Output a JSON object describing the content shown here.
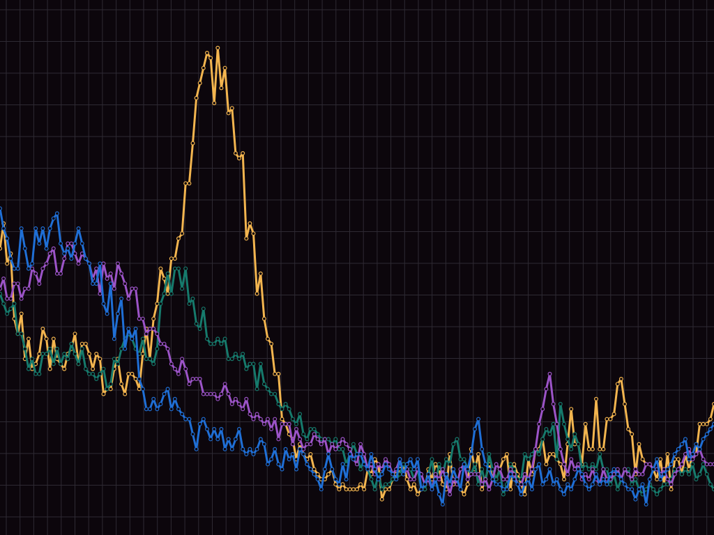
{
  "chart_data": {
    "type": "line",
    "title": "",
    "xlabel": "",
    "ylabel": "",
    "grid": true,
    "legend": "none",
    "xlim": [
      0,
      200
    ],
    "ylim": [
      0,
      100
    ],
    "background": "#0c060c",
    "grid_color": "#2e2a33",
    "series": [
      {
        "color": "#f3b54f",
        "values": [
          56,
          61,
          53,
          55,
          42,
          39,
          43,
          34,
          38,
          32,
          33,
          35,
          40,
          38,
          32,
          38,
          34,
          33,
          32,
          35,
          36,
          39,
          33,
          37,
          37,
          35,
          32,
          35,
          34,
          27,
          28,
          28,
          32,
          34,
          29,
          27,
          31,
          31,
          30,
          28,
          35,
          40,
          34,
          42,
          45,
          52,
          50,
          47,
          54,
          54,
          58,
          59,
          69,
          69,
          77,
          86,
          89,
          92,
          95,
          94,
          85,
          96,
          88,
          92,
          83,
          84,
          75,
          74,
          75,
          58,
          61,
          59,
          47,
          51,
          42,
          38,
          37,
          31,
          31,
          22,
          21,
          19,
          18,
          14,
          17,
          15,
          14,
          15,
          12,
          11,
          10,
          10,
          11,
          12,
          9,
          8,
          9,
          8,
          8,
          8,
          8,
          9,
          8,
          12,
          11,
          14,
          13,
          6,
          8,
          8,
          10,
          11,
          12,
          13,
          10,
          8,
          9,
          7,
          8,
          8,
          12,
          10,
          13,
          12,
          9,
          8,
          15,
          9,
          10,
          8,
          7,
          9,
          16,
          12,
          15,
          8,
          10,
          13,
          10,
          10,
          12,
          14,
          15,
          8,
          13,
          11,
          9,
          7,
          14,
          11,
          16,
          16,
          18,
          13,
          15,
          15,
          14,
          13,
          10,
          17,
          24,
          17,
          17,
          13,
          21,
          16,
          16,
          26,
          16,
          16,
          22,
          22,
          23,
          29,
          30,
          25,
          20,
          19,
          11,
          17,
          14,
          13,
          13,
          12,
          10,
          14,
          9,
          15,
          8,
          14,
          14,
          11,
          15,
          12,
          15,
          15,
          21,
          21,
          21,
          22,
          25
        ]
      },
      {
        "color": "#167a6c",
        "values": [
          47,
          45,
          43,
          44,
          45,
          39,
          39,
          36,
          32,
          34,
          31,
          31,
          35,
          35,
          36,
          33,
          36,
          33,
          35,
          34,
          37,
          35,
          33,
          36,
          32,
          31,
          31,
          30,
          31,
          32,
          28,
          29,
          34,
          33,
          36,
          38,
          39,
          38,
          36,
          35,
          38,
          34,
          34,
          33,
          36,
          45,
          47,
          51,
          47,
          52,
          52,
          48,
          52,
          45,
          46,
          41,
          40,
          44,
          38,
          37,
          37,
          38,
          37,
          38,
          34,
          34,
          35,
          34,
          35,
          32,
          33,
          33,
          28,
          33,
          29,
          28,
          27,
          27,
          25,
          24,
          25,
          24,
          22,
          21,
          23,
          19,
          18,
          20,
          20,
          19,
          18,
          18,
          18,
          17,
          18,
          16,
          16,
          13,
          15,
          17,
          15,
          12,
          14,
          12,
          10,
          8,
          11,
          8,
          9,
          9,
          10,
          10,
          11,
          13,
          12,
          12,
          10,
          12,
          8,
          8,
          11,
          14,
          9,
          13,
          11,
          14,
          13,
          17,
          18,
          14,
          14,
          12,
          11,
          13,
          9,
          12,
          9,
          15,
          12,
          10,
          12,
          7,
          9,
          13,
          12,
          10,
          10,
          15,
          14,
          15,
          16,
          15,
          18,
          20,
          19,
          21,
          14,
          25,
          21,
          18,
          16,
          19,
          17,
          12,
          13,
          12,
          13,
          12,
          15,
          12,
          12,
          9,
          11,
          8,
          10,
          12,
          12,
          9,
          10,
          8,
          7,
          8,
          9,
          8,
          7,
          8,
          9,
          9,
          10,
          12,
          12,
          11,
          12,
          11,
          13,
          10,
          11,
          13,
          11,
          9,
          8
        ]
      },
      {
        "color": "#9c54c8",
        "values": [
          48,
          50,
          46,
          46,
          49,
          49,
          46,
          48,
          48,
          52,
          51,
          49,
          52,
          53,
          55,
          56,
          51,
          51,
          54,
          57,
          57,
          55,
          53,
          55,
          54,
          53,
          50,
          52,
          47,
          53,
          50,
          51,
          48,
          53,
          51,
          49,
          46,
          48,
          48,
          42,
          42,
          39,
          40,
          40,
          39,
          37,
          37,
          36,
          33,
          32,
          31,
          34,
          32,
          29,
          30,
          30,
          30,
          27,
          27,
          27,
          27,
          26,
          27,
          29,
          27,
          25,
          26,
          25,
          24,
          26,
          23,
          22,
          23,
          22,
          21,
          22,
          20,
          22,
          18,
          21,
          21,
          21,
          17,
          20,
          18,
          16,
          17,
          17,
          19,
          18,
          17,
          18,
          15,
          17,
          16,
          17,
          18,
          17,
          16,
          14,
          13,
          17,
          15,
          12,
          13,
          11,
          13,
          12,
          14,
          13,
          11,
          12,
          14,
          11,
          12,
          10,
          10,
          12,
          11,
          9,
          10,
          8,
          11,
          10,
          12,
          10,
          7,
          10,
          9,
          12,
          13,
          10,
          11,
          11,
          11,
          9,
          10,
          8,
          10,
          13,
          12,
          10,
          10,
          12,
          11,
          9,
          9,
          11,
          10,
          12,
          16,
          21,
          24,
          28,
          31,
          25,
          21,
          16,
          13,
          11,
          14,
          12,
          13,
          10,
          11,
          10,
          12,
          10,
          9,
          12,
          10,
          10,
          11,
          12,
          10,
          12,
          11,
          10,
          12,
          11,
          11,
          13,
          13,
          12,
          12,
          11,
          12,
          10,
          9,
          11,
          12,
          13,
          15,
          16,
          14,
          15,
          16,
          14,
          13,
          13,
          13
        ]
      },
      {
        "color": "#1f6fd6",
        "values": [
          64,
          60,
          58,
          54,
          52,
          52,
          60,
          56,
          52,
          53,
          60,
          57,
          60,
          56,
          60,
          62,
          63,
          57,
          55,
          56,
          54,
          57,
          60,
          57,
          54,
          53,
          49,
          49,
          53,
          45,
          43,
          49,
          38,
          43,
          46,
          36,
          40,
          38,
          40,
          30,
          28,
          24,
          24,
          26,
          24,
          25,
          27,
          28,
          24,
          26,
          24,
          23,
          22,
          22,
          19,
          16,
          21,
          22,
          20,
          18,
          20,
          18,
          20,
          16,
          18,
          16,
          18,
          20,
          16,
          15,
          16,
          15,
          16,
          18,
          17,
          13,
          14,
          16,
          13,
          12,
          16,
          14,
          15,
          12,
          16,
          15,
          13,
          12,
          11,
          10,
          8,
          12,
          15,
          12,
          10,
          9,
          13,
          10,
          15,
          14,
          15,
          15,
          13,
          12,
          15,
          12,
          10,
          11,
          13,
          12,
          11,
          10,
          14,
          11,
          13,
          14,
          12,
          14,
          8,
          9,
          11,
          8,
          10,
          7,
          5,
          11,
          9,
          12,
          10,
          8,
          13,
          12,
          15,
          20,
          22,
          16,
          13,
          12,
          10,
          9,
          9,
          8,
          8,
          11,
          10,
          9,
          7,
          9,
          10,
          8,
          12,
          13,
          9,
          10,
          12,
          9,
          10,
          8,
          7,
          9,
          8,
          10,
          12,
          11,
          9,
          8,
          9,
          11,
          9,
          10,
          9,
          11,
          12,
          11,
          10,
          9,
          8,
          8,
          6,
          8,
          9,
          5,
          10,
          12,
          14,
          10,
          11,
          12,
          13,
          15,
          16,
          17,
          18,
          14,
          15,
          17,
          16,
          18,
          19,
          20,
          21
        ]
      }
    ]
  }
}
